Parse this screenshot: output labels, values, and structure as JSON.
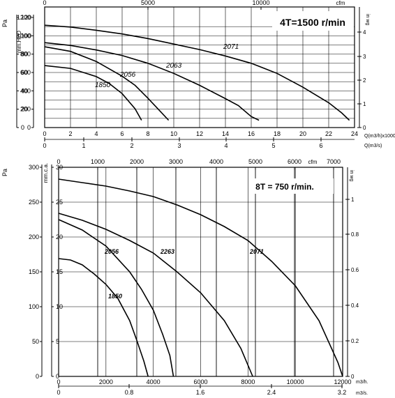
{
  "chart_data": [
    {
      "type": "line",
      "speed_label": "4T=1500 r/min",
      "x_axis_primary": {
        "unit": "Q(m3/h)x1000",
        "ticks": [
          "0",
          "2",
          "4",
          "6",
          "8",
          "10",
          "12",
          "14",
          "16",
          "18",
          "20",
          "22",
          "24"
        ],
        "range": [
          0,
          24
        ]
      },
      "x_axis_secondary": {
        "unit": "Q(m3/s)",
        "ticks": [
          "0",
          "1",
          "2",
          "3",
          "4",
          "5",
          "6"
        ]
      },
      "x_axis_top": {
        "unit": "cfm",
        "ticks": [
          "0",
          "5000",
          "10000"
        ]
      },
      "y_axis_left_pa": {
        "unit": "Pa",
        "ticks": [
          "0",
          "200",
          "400",
          "600",
          "800",
          "1000",
          "1200"
        ],
        "range": [
          0,
          1200
        ]
      },
      "y_axis_left_mm": {
        "unit": "mm.H2O",
        "ticks": [
          "0",
          "20",
          "40",
          "60",
          "80",
          "100",
          "120"
        ]
      },
      "y_axis_right_inwg": {
        "unit": "in wg",
        "ticks": [
          "0",
          "1",
          "2",
          "3",
          "4"
        ]
      },
      "grid": true,
      "series": [
        {
          "name": "1850",
          "points": [
            [
              0,
              675
            ],
            [
              2,
              645
            ],
            [
              4,
              555
            ],
            [
              5,
              480
            ],
            [
              6,
              370
            ],
            [
              7,
              205
            ],
            [
              7.5,
              80
            ]
          ]
        },
        {
          "name": "2056",
          "points": [
            [
              0,
              880
            ],
            [
              2,
              830
            ],
            [
              4,
              720
            ],
            [
              6,
              560
            ],
            [
              7,
              460
            ],
            [
              8,
              320
            ],
            [
              8.8,
              200
            ],
            [
              9.6,
              80
            ]
          ]
        },
        {
          "name": "2063",
          "points": [
            [
              0,
              925
            ],
            [
              2,
              895
            ],
            [
              4,
              845
            ],
            [
              6,
              785
            ],
            [
              8,
              700
            ],
            [
              10,
              590
            ],
            [
              12,
              460
            ],
            [
              14,
              315
            ],
            [
              15,
              240
            ],
            [
              16,
              120
            ],
            [
              16.6,
              80
            ]
          ]
        },
        {
          "name": "2071",
          "points": [
            [
              0,
              1115
            ],
            [
              2,
              1095
            ],
            [
              4,
              1060
            ],
            [
              6,
              1020
            ],
            [
              8,
              970
            ],
            [
              10,
              910
            ],
            [
              12,
              850
            ],
            [
              14,
              780
            ],
            [
              16,
              700
            ],
            [
              18,
              590
            ],
            [
              20,
              440
            ],
            [
              22,
              270
            ],
            [
              23,
              160
            ],
            [
              23.6,
              80
            ]
          ]
        }
      ]
    },
    {
      "type": "line",
      "speed_label": "8T = 750 r/min.",
      "x_axis_primary": {
        "unit": "m3/h.",
        "ticks": [
          "0",
          "2000",
          "4000",
          "6000",
          "8000",
          "10000",
          "12000"
        ],
        "range": [
          0,
          12000
        ]
      },
      "x_axis_secondary": {
        "unit": "m3/s.",
        "ticks": [
          "0",
          "0.8",
          "1.6",
          "2.4",
          "3.2"
        ]
      },
      "x_axis_top": {
        "unit": "cfm",
        "ticks": [
          "0",
          "1000",
          "2000",
          "3000",
          "4000",
          "5000",
          "6000",
          "7000"
        ]
      },
      "y_axis_left_pa": {
        "unit": "Pa",
        "ticks": [
          "0",
          "50",
          "100",
          "150",
          "200",
          "250",
          "300"
        ],
        "range": [
          0,
          300
        ]
      },
      "y_axis_left_mm": {
        "unit": "mm.c.a.",
        "ticks": [
          "0",
          "5",
          "10",
          "15",
          "20",
          "25",
          "30"
        ]
      },
      "y_axis_right_inwg": {
        "unit": "in wg",
        "ticks": [
          "0",
          "0.2",
          "0.4",
          "0.6",
          "0.8",
          "1"
        ]
      },
      "grid": true,
      "series": [
        {
          "name": "1850",
          "points": [
            [
              0,
              169
            ],
            [
              500,
              167
            ],
            [
              1000,
              160
            ],
            [
              1500,
              147
            ],
            [
              2000,
              132
            ],
            [
              2500,
              112
            ],
            [
              3000,
              80
            ],
            [
              3300,
              52
            ],
            [
              3600,
              22
            ],
            [
              3780,
              0
            ]
          ]
        },
        {
          "name": "2056",
          "points": [
            [
              0,
              225
            ],
            [
              1000,
              210
            ],
            [
              2000,
              187
            ],
            [
              3000,
              150
            ],
            [
              3500,
              125
            ],
            [
              4000,
              95
            ],
            [
              4400,
              60
            ],
            [
              4700,
              30
            ],
            [
              4850,
              0
            ]
          ]
        },
        {
          "name": "2263",
          "points": [
            [
              0,
              234
            ],
            [
              1000,
              224
            ],
            [
              2000,
              211
            ],
            [
              3000,
              195
            ],
            [
              4000,
              177
            ],
            [
              5000,
              150
            ],
            [
              6000,
              120
            ],
            [
              7000,
              80
            ],
            [
              7700,
              40
            ],
            [
              8200,
              0
            ]
          ]
        },
        {
          "name": "2071",
          "points": [
            [
              0,
              283
            ],
            [
              1000,
              278
            ],
            [
              2000,
              273
            ],
            [
              3000,
              266
            ],
            [
              4000,
              258
            ],
            [
              5000,
              246
            ],
            [
              6000,
              232
            ],
            [
              7000,
              215
            ],
            [
              8000,
              195
            ],
            [
              9000,
              165
            ],
            [
              10000,
              130
            ],
            [
              11000,
              80
            ],
            [
              11800,
              20
            ],
            [
              12000,
              0
            ]
          ]
        }
      ]
    }
  ]
}
